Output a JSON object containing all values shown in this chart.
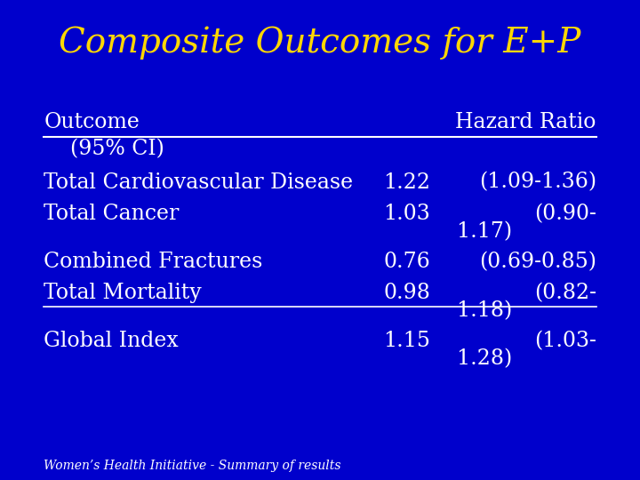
{
  "title": "Composite Outcomes for E+P",
  "background_color": "#0000CC",
  "title_color": "#FFD700",
  "text_color": "#FFFFFF",
  "header_left": "Outcome",
  "header_right": "Hazard Ratio",
  "subheader": "    (95% CI)",
  "rows": [
    {
      "outcome": "Total Cardiovascular Disease",
      "hr": "1.22",
      "ci": "(1.09-1.36)",
      "wrap": false
    },
    {
      "outcome": "Total Cancer",
      "hr": "1.03",
      "ci": "(0.90-",
      "wrap": true,
      "wrap2": "    1.17)"
    },
    {
      "outcome": "Combined Fractures",
      "hr": "0.76",
      "ci": "(0.69-0.85)",
      "wrap": false
    },
    {
      "outcome": "Total Mortality",
      "hr": "0.98",
      "ci": "(0.82-",
      "wrap": true,
      "wrap2": "    1.18)",
      "underline": true
    },
    {
      "outcome": "Global Index",
      "hr": "1.15",
      "ci": "(1.03-",
      "wrap": true,
      "wrap2": "    1.28)"
    }
  ],
  "footer": "Women’s Health Initiative - Summary of results",
  "title_fontsize": 28,
  "header_fontsize": 17,
  "row_fontsize": 17,
  "footer_fontsize": 10
}
